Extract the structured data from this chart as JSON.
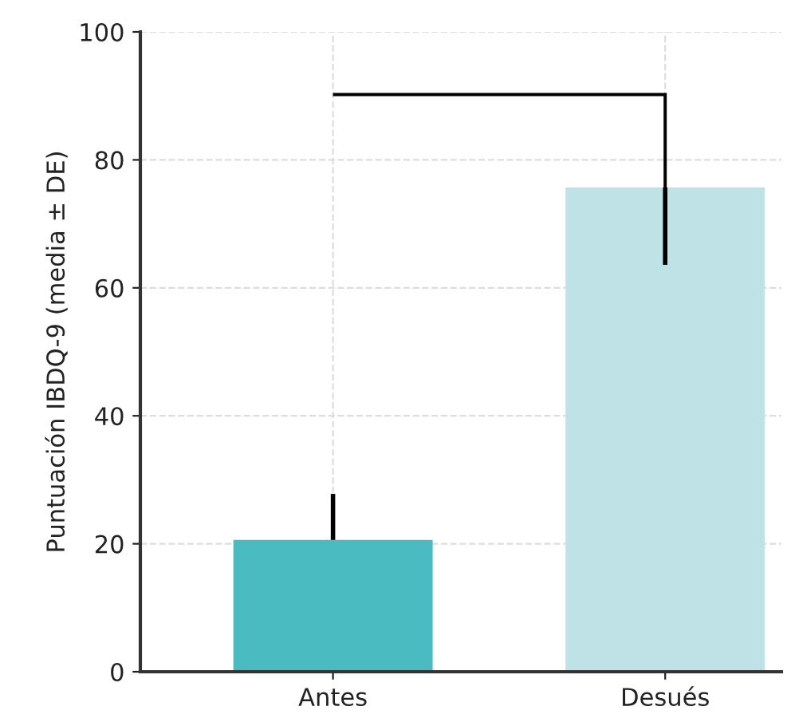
{
  "chart_data": {
    "type": "bar",
    "ylabel": "Puntuación IBDQ-9 (media ± DE)",
    "categories": [
      "Antes",
      "Desués"
    ],
    "values": [
      20.6,
      75.7
    ],
    "colors": [
      "#4bbbc2",
      "#bfe2e7"
    ],
    "errors": [
      [
        20.6,
        27.8
      ],
      [
        63.6,
        75.7
      ]
    ],
    "ylim": [
      0,
      100
    ],
    "yticks": [
      0,
      20,
      40,
      60,
      80,
      100
    ],
    "grid": true
  }
}
